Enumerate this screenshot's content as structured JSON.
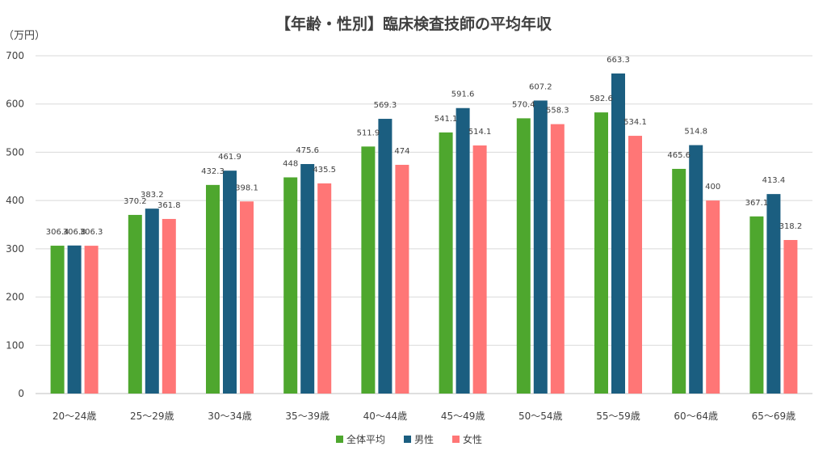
{
  "chart_data": {
    "type": "bar",
    "title": "【年齢・性別】臨床検査技師の平均年収",
    "ylabel": "（万円）",
    "ylim": [
      0,
      700
    ],
    "yticks": [
      0,
      100,
      200,
      300,
      400,
      500,
      600,
      700
    ],
    "grid": true,
    "legend_position": "bottom",
    "categories": [
      "20～24歳",
      "25～29歳",
      "30～34歳",
      "35～39歳",
      "40～44歳",
      "45～49歳",
      "50～54歳",
      "55～59歳",
      "60～64歳",
      "65～69歳"
    ],
    "series": [
      {
        "name": "全体平均",
        "color": "#4ea72e",
        "values": [
          306.4,
          370.2,
          432.3,
          448,
          511.9,
          541.1,
          570.4,
          582.6,
          465.6,
          367.1
        ]
      },
      {
        "name": "男性",
        "color": "#1b5e80",
        "values": [
          306.8,
          383.2,
          461.9,
          475.6,
          569.3,
          591.6,
          607.2,
          663.3,
          514.8,
          413.4
        ]
      },
      {
        "name": "女性",
        "color": "#ff7676",
        "values": [
          306.3,
          361.8,
          398.1,
          435.5,
          474,
          514.1,
          558.3,
          534.1,
          400,
          318.2
        ]
      }
    ]
  }
}
